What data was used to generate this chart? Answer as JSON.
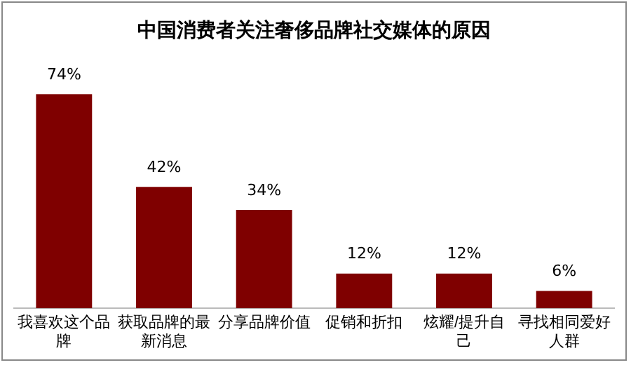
{
  "chart_data": {
    "type": "bar",
    "title": "中国消费者关注奢侈品牌社交媒体的原因",
    "categories": [
      "我喜欢这个品牌",
      "获取品牌的最新消息",
      "分享品牌价值",
      "促销和折扣",
      "炫耀/提升自己",
      "寻找相同爱好人群"
    ],
    "values": [
      74,
      42,
      34,
      12,
      12,
      6
    ],
    "value_labels": [
      "74%",
      "42%",
      "34%",
      "12%",
      "12%",
      "6%"
    ],
    "color": "#7f0000",
    "grid": false,
    "legend": false
  }
}
